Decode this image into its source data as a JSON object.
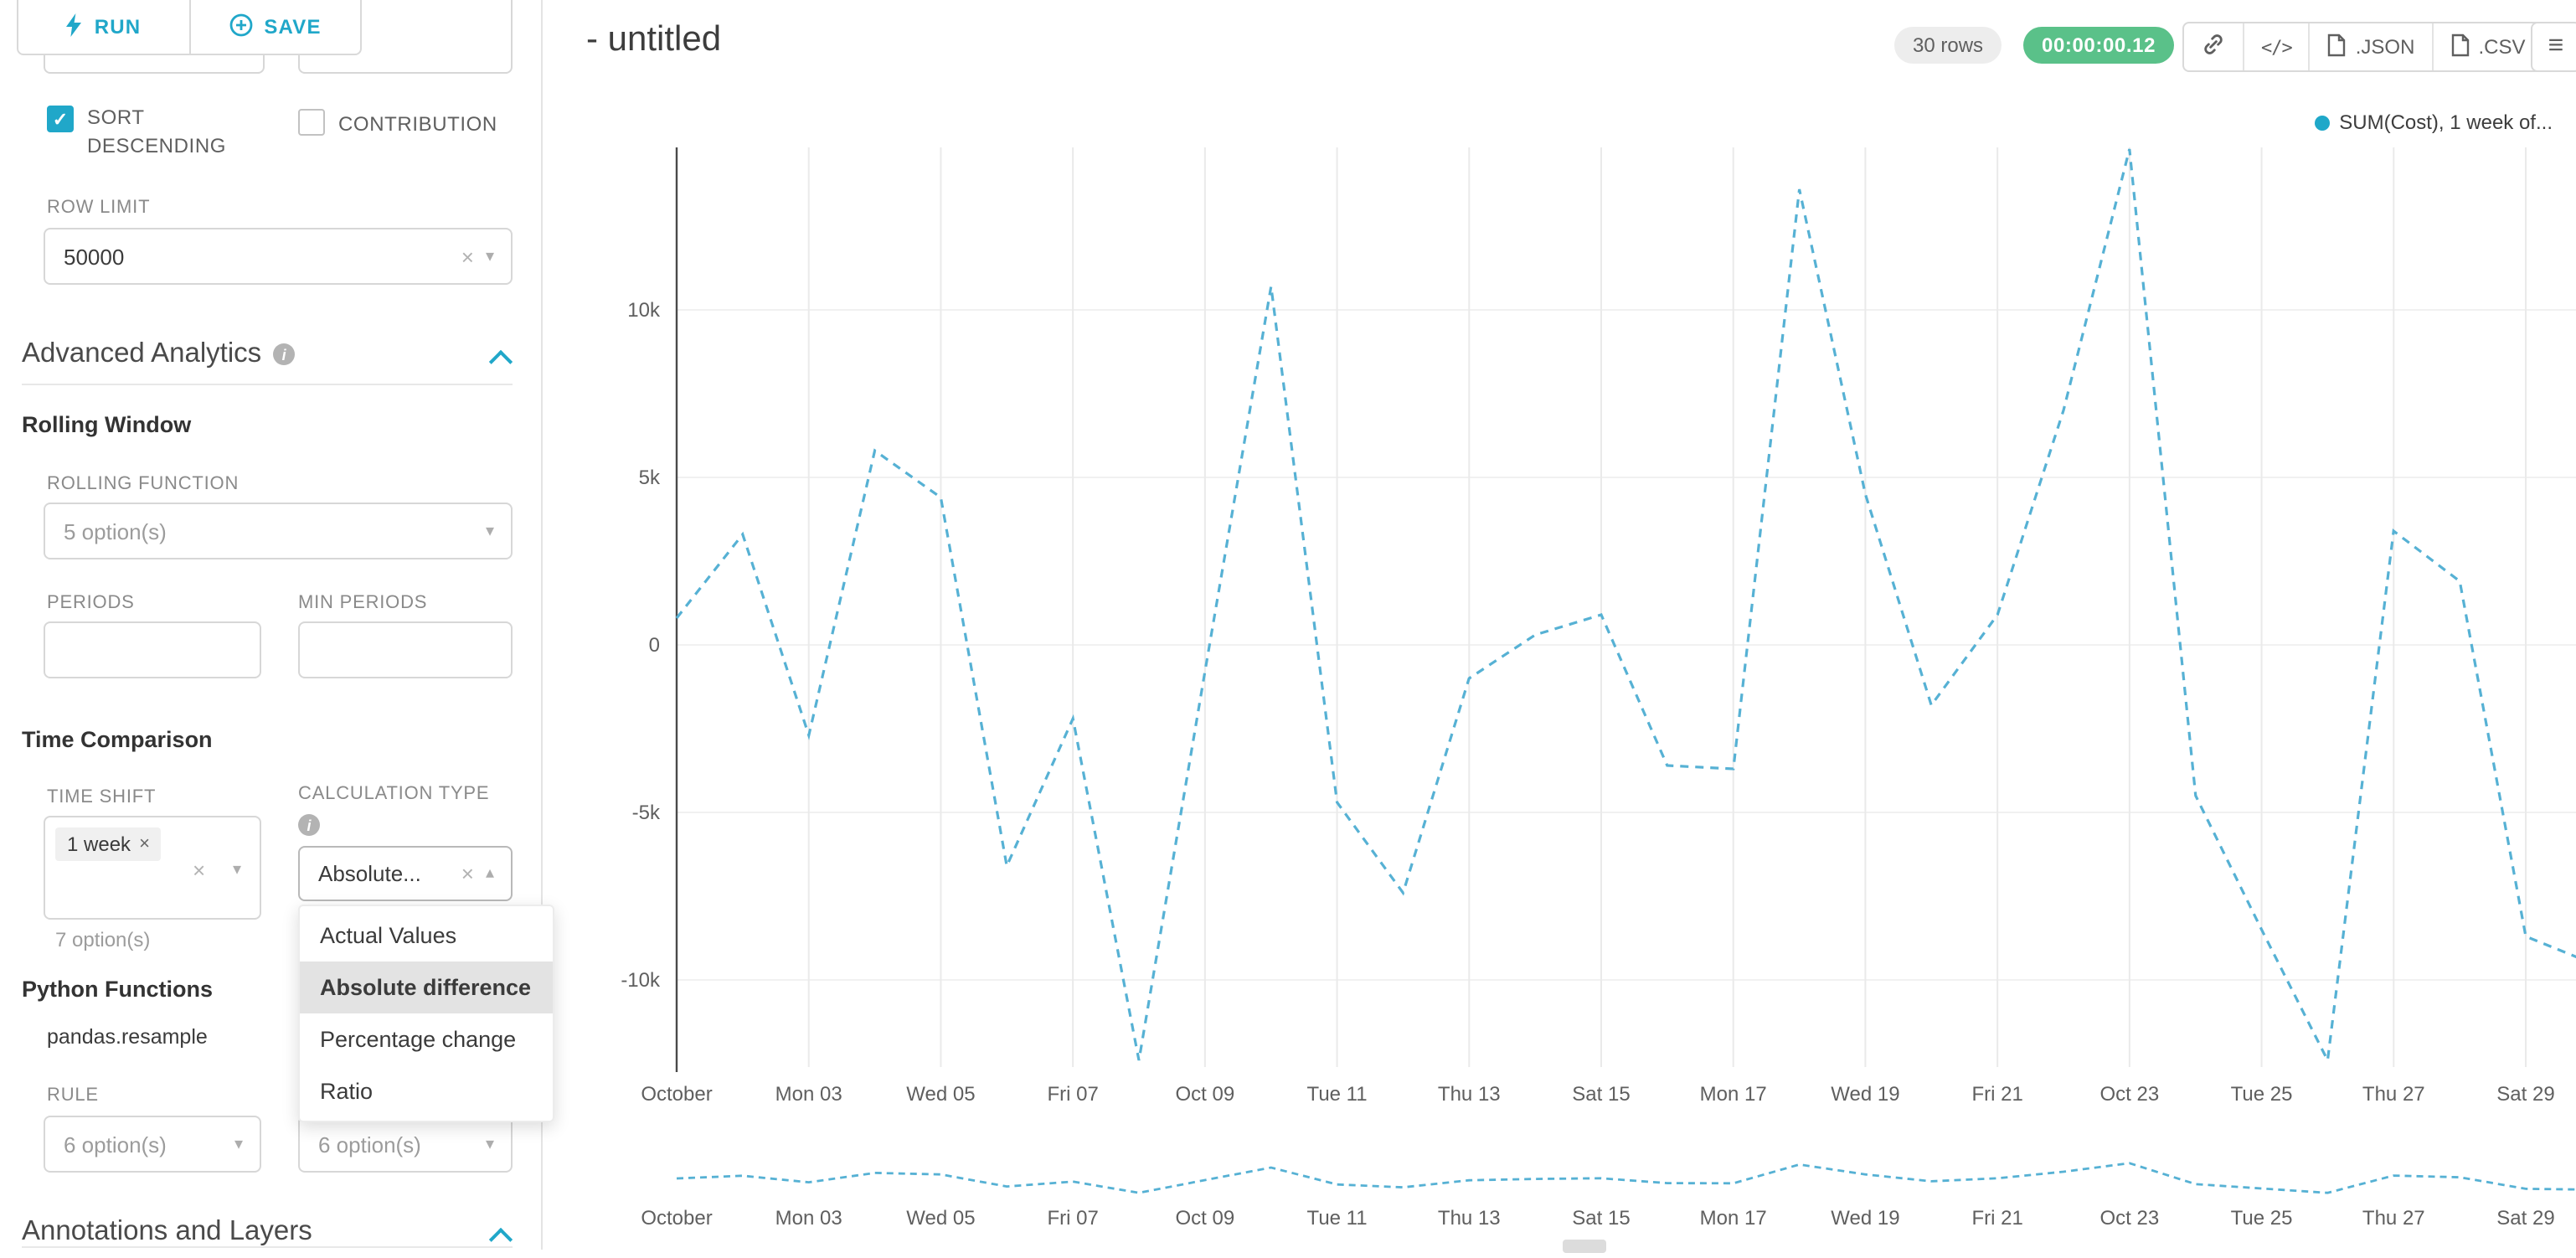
{
  "colors": {
    "accent": "#20a7c9",
    "success": "#5ac189",
    "legend_dot": "#1fa8c9",
    "line": "#56b1d4"
  },
  "icons": {
    "clear": "×",
    "caret_down": "▾",
    "caret_up": "▴",
    "check": "✓",
    "menu": "≡",
    "code": "</>",
    "info": "i"
  },
  "topbar": {
    "run_label": "RUN",
    "save_label": "SAVE",
    "title": "- untitled",
    "rows_badge": "30 rows",
    "timer_badge": "00:00:00.12",
    "json_label": ".JSON",
    "csv_label": ".CSV"
  },
  "sidebar": {
    "topcut_left_value": "option(s)",
    "sort_label": "SORT DESCENDING",
    "contribution_label": "CONTRIBUTION",
    "row_limit_label": "ROW LIMIT",
    "row_limit_value": "50000",
    "advanced_analytics_title": "Advanced Analytics",
    "rolling_window_title": "Rolling Window",
    "rolling_function_label": "ROLLING FUNCTION",
    "rolling_function_value": "5 option(s)",
    "periods_label": "PERIODS",
    "min_periods_label": "MIN PERIODS",
    "time_comparison_title": "Time Comparison",
    "time_shift_label": "TIME SHIFT",
    "time_shift_tag": "1 week",
    "time_shift_hint": "7 option(s)",
    "calculation_type_label": "CALCULATION TYPE",
    "calculation_type_value": "Absolute...",
    "dropdown": {
      "items": [
        "Actual Values",
        "Absolute difference",
        "Percentage change",
        "Ratio"
      ],
      "selected": "Absolute difference"
    },
    "python_functions_title": "Python Functions",
    "pandas_resample_label": "pandas.resample",
    "rule_label": "RULE",
    "rule_value": "6 option(s)",
    "method_value": "6 option(s)",
    "annotations_title": "Annotations and Layers"
  },
  "chart_data": {
    "type": "line",
    "legend": "SUM(Cost), 1 week of...",
    "series": [
      {
        "name": "SUM(Cost), 1 week of...",
        "values": [
          800,
          3300,
          -2700,
          5800,
          4400,
          -6600,
          -2200,
          -12400,
          -800,
          10700,
          -4700,
          -7400,
          -1000,
          300,
          900,
          -3600,
          -3700,
          13600,
          4500,
          -1800,
          900,
          7000,
          14800,
          -4500,
          -8500,
          -12400,
          3400,
          1900,
          -8700,
          -9500
        ]
      }
    ],
    "x_tick_labels": [
      "October",
      "Mon 03",
      "Wed 05",
      "Fri 07",
      "Oct 09",
      "Tue 11",
      "Thu 13",
      "Sat 15",
      "Mon 17",
      "Wed 19",
      "Fri 21",
      "Oct 23",
      "Tue 25",
      "Thu 27",
      "Sat 29"
    ],
    "points_per_tick": 2,
    "y_tick_labels": [
      "10k",
      "5k",
      "0",
      "-5k",
      "-10k"
    ],
    "y_tick_values": [
      10000,
      5000,
      0,
      -5000,
      -10000
    ],
    "ylim": [
      -13000,
      15500
    ],
    "line_style": "dashed",
    "grid": true,
    "has_mini_preview": true
  }
}
